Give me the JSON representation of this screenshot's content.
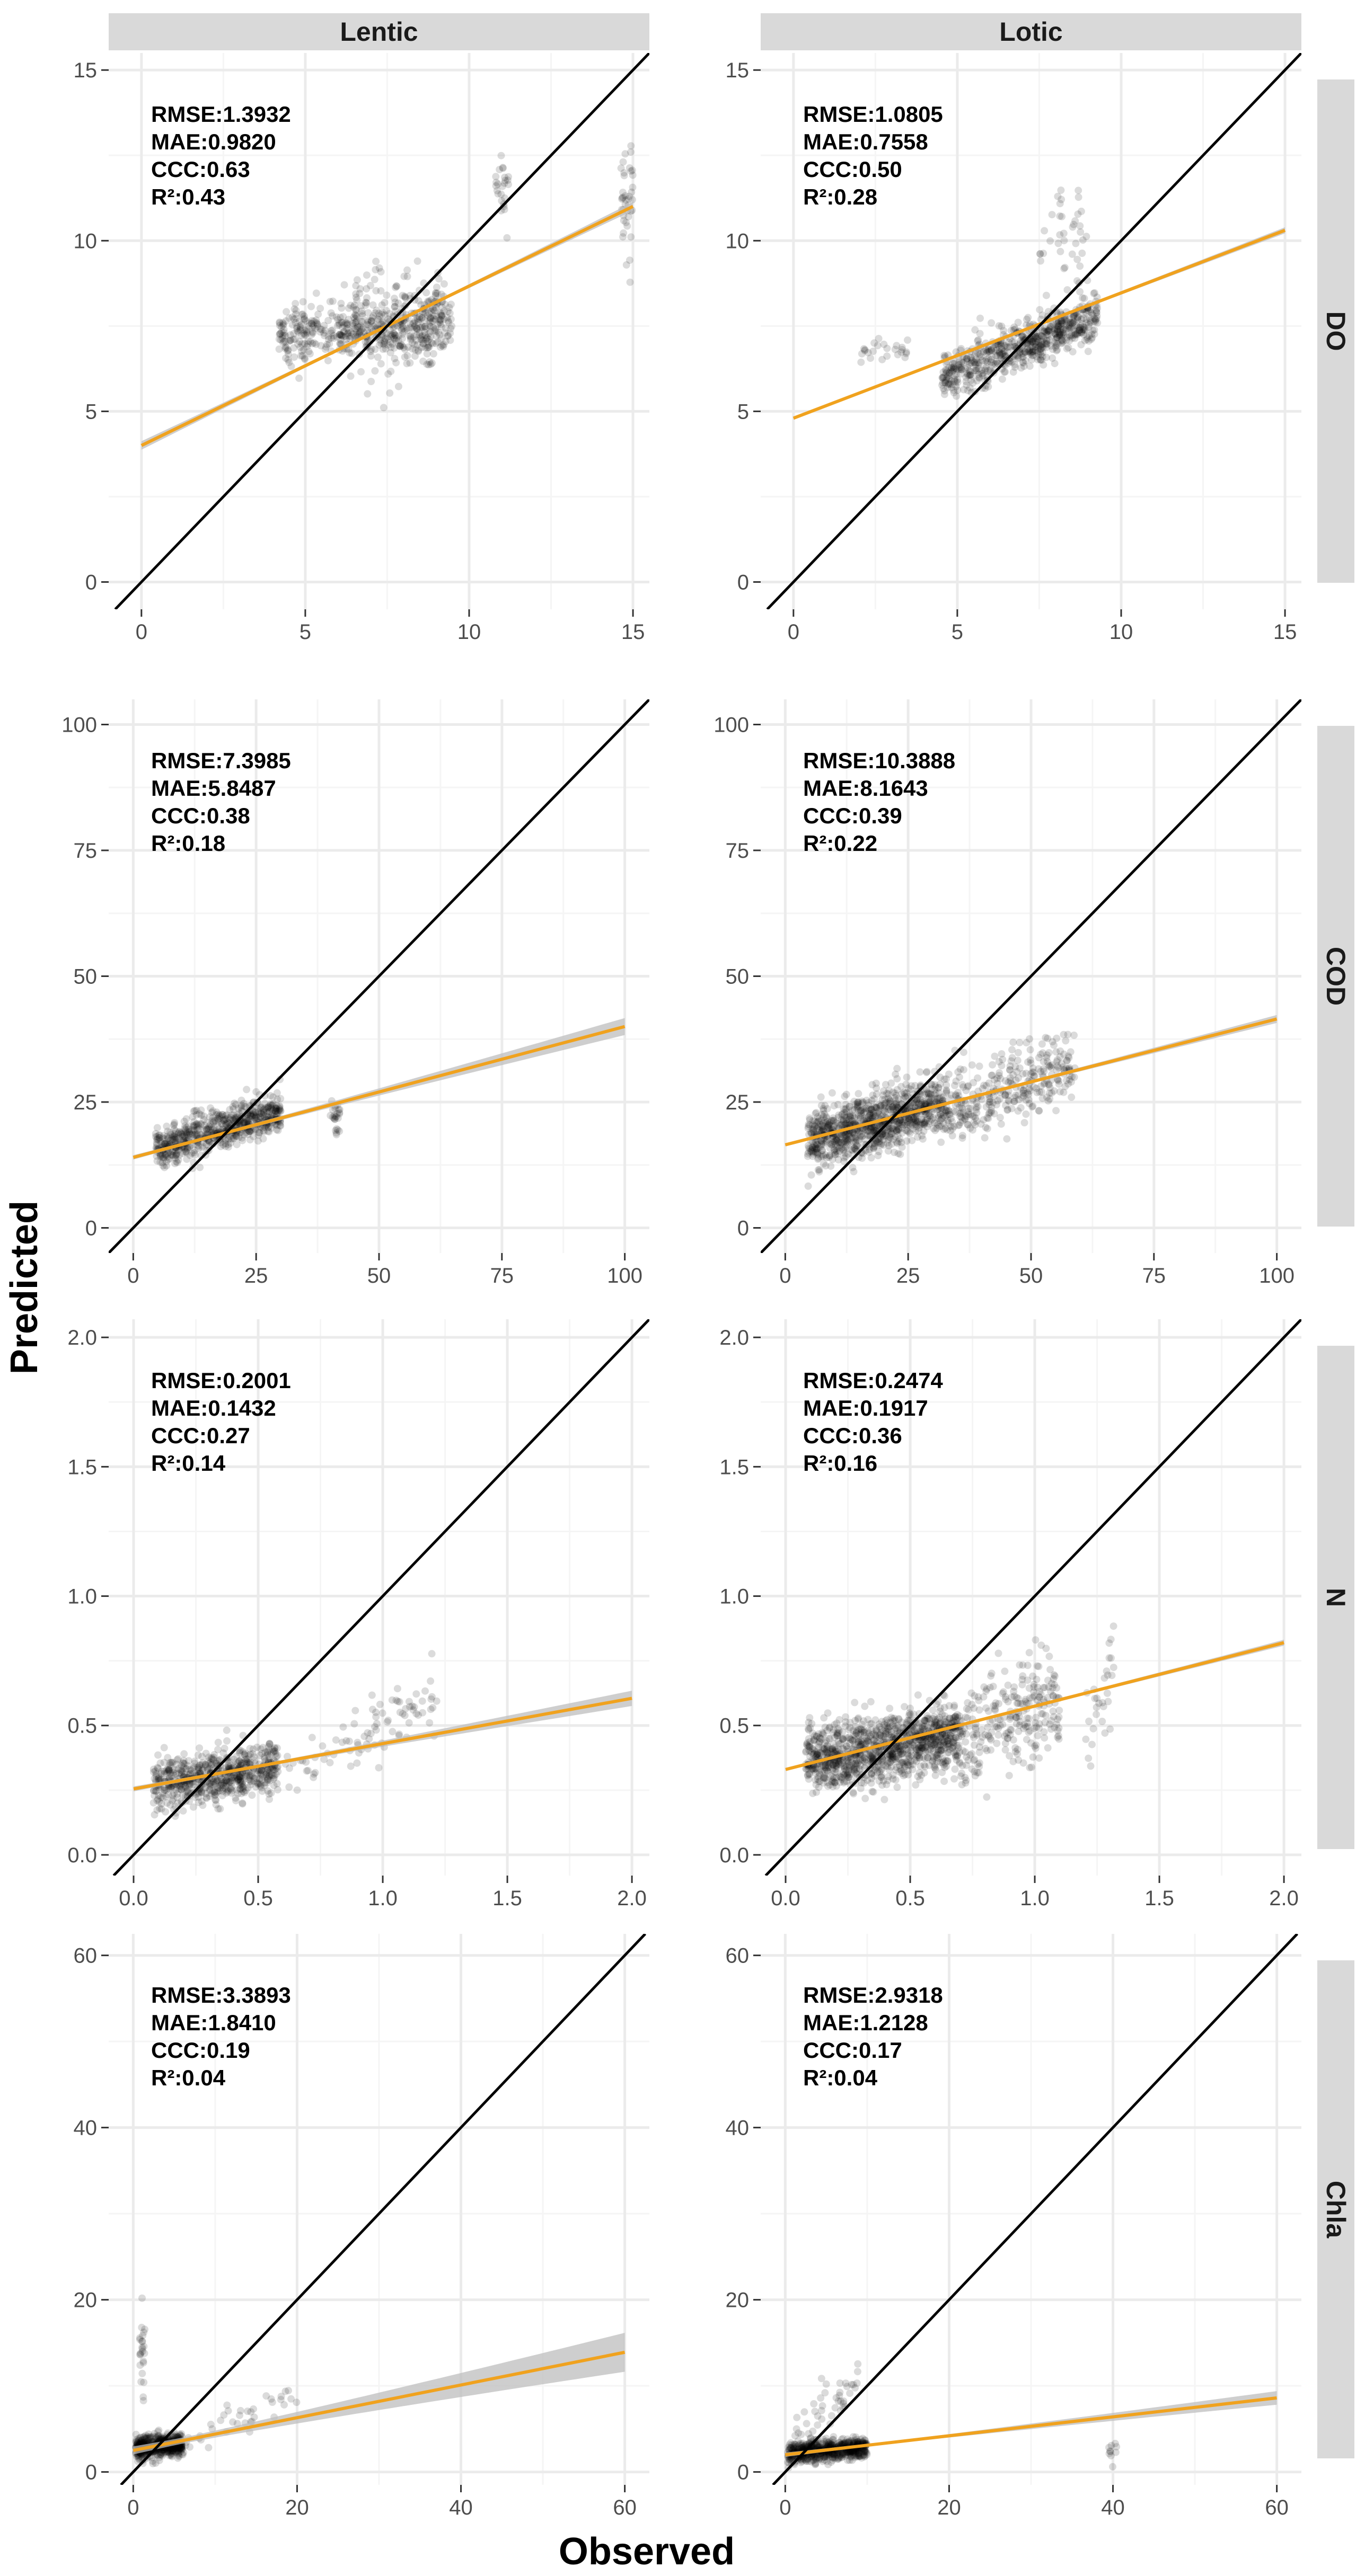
{
  "figure": {
    "xlabel": "Observed",
    "ylabel": "Predicted",
    "columns": [
      "Lentic",
      "Lotic"
    ],
    "rows": [
      "DO",
      "COD",
      "N",
      "Chla"
    ]
  },
  "colors": {
    "points": "#000000",
    "fit_line": "#f0a21e",
    "fit_ribbon": "#bdbdbd",
    "identity_line": "#000000",
    "strip_bg": "#d9d9d9",
    "grid_major": "#ebebeb",
    "grid_minor": "#f5f5f5"
  },
  "chart_data": [
    {
      "type": "scatter",
      "column": "Lentic",
      "row": "DO",
      "xlim": [
        -1,
        15.5
      ],
      "ylim": [
        -0.8,
        15.5
      ],
      "xticks": [
        0,
        5,
        10,
        15
      ],
      "yticks": [
        0,
        5,
        10,
        15
      ],
      "xtick_labels": [
        "0",
        "5",
        "10",
        "15"
      ],
      "ytick_labels": [
        "0",
        "5",
        "10",
        "15"
      ],
      "metrics": [
        "RMSE:1.3932",
        "MAE:0.9820",
        "CCC:0.63",
        "R²:0.43"
      ],
      "fit": {
        "intercept": 4.0,
        "slope": 0.467,
        "se": 0.1
      },
      "clusters": [
        {
          "x": [
            4.2,
            9.5
          ],
          "y_center": [
            7.2,
            7.6
          ],
          "y_spread": 0.9,
          "n": 500
        },
        {
          "x": [
            6.5,
            9.2
          ],
          "y_center": [
            7.5,
            7.8
          ],
          "y_spread": 1.8,
          "n": 130
        },
        {
          "x": [
            10.8,
            11.2
          ],
          "y_center": [
            11.5,
            11.5
          ],
          "y_spread": 1.2,
          "n": 25
        },
        {
          "x": [
            14.6,
            15.0
          ],
          "y_center": [
            11.0,
            11.5
          ],
          "y_spread": 1.6,
          "n": 40
        }
      ]
    },
    {
      "type": "scatter",
      "column": "Lotic",
      "row": "DO",
      "xlim": [
        -1,
        15.5
      ],
      "ylim": [
        -0.8,
        15.5
      ],
      "xticks": [
        0,
        5,
        10,
        15
      ],
      "yticks": [
        0,
        5,
        10,
        15
      ],
      "xtick_labels": [
        "0",
        "5",
        "10",
        "15"
      ],
      "ytick_labels": [
        "0",
        "5",
        "10",
        "15"
      ],
      "metrics": [
        "RMSE:1.0805",
        "MAE:0.7558",
        "CCC:0.50",
        "R²:0.28"
      ],
      "fit": {
        "intercept": 4.8,
        "slope": 0.367,
        "se": 0.05
      },
      "clusters": [
        {
          "x": [
            4.5,
            9.3
          ],
          "y_center": [
            6.0,
            7.8
          ],
          "y_spread": 0.7,
          "n": 650
        },
        {
          "x": [
            2.0,
            3.5
          ],
          "y_center": [
            6.6,
            6.8
          ],
          "y_spread": 0.4,
          "n": 25
        },
        {
          "x": [
            7.5,
            9.0
          ],
          "y_center": [
            9.5,
            10.5
          ],
          "y_spread": 1.5,
          "n": 40
        }
      ]
    },
    {
      "type": "scatter",
      "column": "Lentic",
      "row": "COD",
      "xlim": [
        -5,
        105
      ],
      "ylim": [
        -5,
        105
      ],
      "xticks": [
        0,
        25,
        50,
        75,
        100
      ],
      "yticks": [
        0,
        25,
        50,
        75,
        100
      ],
      "xtick_labels": [
        "0",
        "25",
        "50",
        "75",
        "100"
      ],
      "ytick_labels": [
        "0",
        "25",
        "50",
        "75",
        "100"
      ],
      "metrics": [
        "RMSE:7.3985",
        "MAE:5.8487",
        "CCC:0.38",
        "R²:0.18"
      ],
      "fit": {
        "intercept": 14.0,
        "slope": 0.26,
        "se": 0.8
      },
      "clusters": [
        {
          "x": [
            4.5,
            30.0
          ],
          "y_center": [
            16.0,
            23.0
          ],
          "y_spread": 4.0,
          "n": 650
        },
        {
          "x": [
            40.0,
            42.0
          ],
          "y_center": [
            22.0,
            22.0
          ],
          "y_spread": 3.0,
          "n": 25
        }
      ]
    },
    {
      "type": "scatter",
      "column": "Lotic",
      "row": "COD",
      "xlim": [
        -5,
        105
      ],
      "ylim": [
        -5,
        105
      ],
      "xticks": [
        0,
        25,
        50,
        75,
        100
      ],
      "yticks": [
        0,
        25,
        50,
        75,
        100
      ],
      "xtick_labels": [
        "0",
        "25",
        "50",
        "75",
        "100"
      ],
      "ytick_labels": [
        "0",
        "25",
        "50",
        "75",
        "100"
      ],
      "metrics": [
        "RMSE:10.3888",
        "MAE:8.1643",
        "CCC:0.39",
        "R²:0.22"
      ],
      "fit": {
        "intercept": 16.5,
        "slope": 0.25,
        "se": 0.4
      },
      "clusters": [
        {
          "x": [
            4.5,
            33.0
          ],
          "y_center": [
            17.0,
            25.0
          ],
          "y_spread": 6.0,
          "n": 950
        },
        {
          "x": [
            33.0,
            59.0
          ],
          "y_center": [
            23.0,
            32.0
          ],
          "y_spread": 7.0,
          "n": 320
        }
      ]
    },
    {
      "type": "scatter",
      "column": "Lentic",
      "row": "N",
      "xlim": [
        -0.1,
        2.07
      ],
      "ylim": [
        -0.08,
        2.07
      ],
      "xticks": [
        0.0,
        0.5,
        1.0,
        1.5,
        2.0
      ],
      "yticks": [
        0.0,
        0.5,
        1.0,
        1.5,
        2.0
      ],
      "xtick_labels": [
        "0.0",
        "0.5",
        "1.0",
        "1.5",
        "2.0"
      ],
      "ytick_labels": [
        "0.0",
        "0.5",
        "1.0",
        "1.5",
        "2.0"
      ],
      "metrics": [
        "RMSE:0.2001",
        "MAE:0.1432",
        "CCC:0.27",
        "R²:0.14"
      ],
      "fit": {
        "intercept": 0.255,
        "slope": 0.175,
        "se": 0.015
      },
      "clusters": [
        {
          "x": [
            0.08,
            0.58
          ],
          "y_center": [
            0.27,
            0.34
          ],
          "y_spread": 0.1,
          "n": 650
        },
        {
          "x": [
            0.6,
            1.22
          ],
          "y_center": [
            0.3,
            0.6
          ],
          "y_spread": 0.12,
          "n": 90
        }
      ]
    },
    {
      "type": "scatter",
      "column": "Lotic",
      "row": "N",
      "xlim": [
        -0.1,
        2.07
      ],
      "ylim": [
        -0.08,
        2.07
      ],
      "xticks": [
        0.0,
        0.5,
        1.0,
        1.5,
        2.0
      ],
      "yticks": [
        0.0,
        0.5,
        1.0,
        1.5,
        2.0
      ],
      "xtick_labels": [
        "0.0",
        "0.5",
        "1.0",
        "1.5",
        "2.0"
      ],
      "ytick_labels": [
        "0.0",
        "0.5",
        "1.0",
        "1.5",
        "2.0"
      ],
      "metrics": [
        "RMSE:0.2474",
        "MAE:0.1917",
        "CCC:0.36",
        "R²:0.16"
      ],
      "fit": {
        "intercept": 0.33,
        "slope": 0.245,
        "se": 0.006
      },
      "clusters": [
        {
          "x": [
            0.08,
            0.7
          ],
          "y_center": [
            0.36,
            0.46
          ],
          "y_spread": 0.13,
          "n": 1100
        },
        {
          "x": [
            0.7,
            1.1
          ],
          "y_center": [
            0.45,
            0.6
          ],
          "y_spread": 0.2,
          "n": 260
        },
        {
          "x": [
            1.2,
            1.32
          ],
          "y_center": [
            0.5,
            0.7
          ],
          "y_spread": 0.2,
          "n": 30
        }
      ]
    },
    {
      "type": "scatter",
      "column": "Lentic",
      "row": "Chla",
      "xlim": [
        -3,
        63
      ],
      "ylim": [
        -1.5,
        62.5
      ],
      "xticks": [
        0,
        20,
        40,
        60
      ],
      "yticks": [
        0,
        20,
        40,
        60
      ],
      "xtick_labels": [
        "0",
        "20",
        "40",
        "60"
      ],
      "ytick_labels": [
        "0",
        "20",
        "40",
        "60"
      ],
      "metrics": [
        "RMSE:3.3893",
        "MAE:1.8410",
        "CCC:0.19",
        "R²:0.04"
      ],
      "fit": {
        "intercept": 2.5,
        "slope": 0.19,
        "se": 1.0
      },
      "clusters": [
        {
          "x": [
            0.3,
            6.0
          ],
          "y_center": [
            2.8,
            3.2
          ],
          "y_spread": 1.3,
          "n": 550
        },
        {
          "x": [
            0.8,
            1.4
          ],
          "y_center": [
            14.0,
            14.0
          ],
          "y_spread": 5.0,
          "n": 25
        },
        {
          "x": [
            6.0,
            20.0
          ],
          "y_center": [
            3.0,
            9.0
          ],
          "y_spread": 2.5,
          "n": 40
        }
      ]
    },
    {
      "type": "scatter",
      "column": "Lotic",
      "row": "Chla",
      "xlim": [
        -3,
        63
      ],
      "ylim": [
        -1.5,
        62.5
      ],
      "xticks": [
        0,
        20,
        40,
        60
      ],
      "yticks": [
        0,
        20,
        40,
        60
      ],
      "xtick_labels": [
        "0",
        "20",
        "40",
        "60"
      ],
      "ytick_labels": [
        "0",
        "20",
        "40",
        "60"
      ],
      "metrics": [
        "RMSE:2.9318",
        "MAE:1.2128",
        "CCC:0.17",
        "R²:0.04"
      ],
      "fit": {
        "intercept": 2.0,
        "slope": 0.11,
        "se": 0.4
      },
      "clusters": [
        {
          "x": [
            0.3,
            10.0
          ],
          "y_center": [
            2.2,
            2.8
          ],
          "y_spread": 1.2,
          "n": 650
        },
        {
          "x": [
            1.0,
            9.0
          ],
          "y_center": [
            5.0,
            10.0
          ],
          "y_spread": 4.0,
          "n": 45
        },
        {
          "x": [
            39.5,
            40.5
          ],
          "y_center": [
            2.5,
            2.5
          ],
          "y_spread": 1.0,
          "n": 10
        }
      ]
    }
  ]
}
